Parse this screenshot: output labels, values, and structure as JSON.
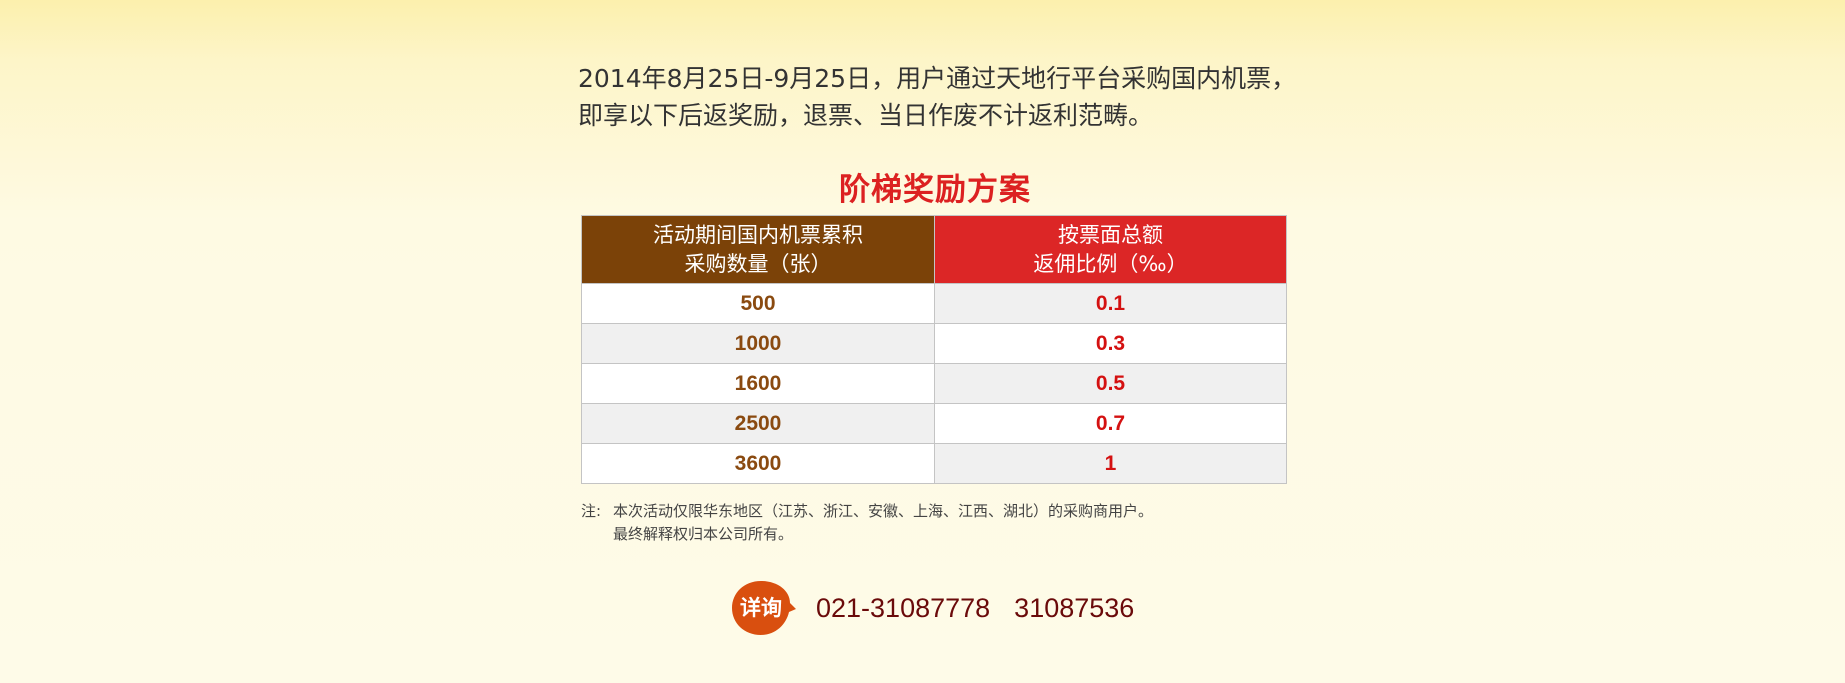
{
  "intro": {
    "line1": "2014年8月25日-9月25日，用户通过天地行平台采购国内机票，",
    "line2": "即享以下后返奖励，退票、当日作废不计返利范畴。"
  },
  "plan": {
    "title": "阶梯奖励方案",
    "headers": {
      "quantity_line1": "活动期间国内机票累积",
      "quantity_line2": "采购数量（张）",
      "rate_line1": "按票面总额",
      "rate_line2": "返佣比例（‰）"
    },
    "rows": [
      {
        "quantity": "500",
        "rate": "0.1"
      },
      {
        "quantity": "1000",
        "rate": "0.3"
      },
      {
        "quantity": "1600",
        "rate": "0.5"
      },
      {
        "quantity": "2500",
        "rate": "0.7"
      },
      {
        "quantity": "3600",
        "rate": "1"
      }
    ]
  },
  "note": {
    "prefix": "注:",
    "line1": "本次活动仅限华东地区（江苏、浙江、安徽、上海、江西、湖北）的采购商用户。",
    "line2": "最终解释权归本公司所有。"
  },
  "contact": {
    "badge_label": "详询",
    "phone_primary": "021-31087778",
    "phone_secondary": "31087536"
  },
  "colors": {
    "title_red": "#dc2121",
    "header_brown": "#7b4208",
    "header_red": "#dc2626",
    "quantity_text": "#8a4a10",
    "rate_text": "#d41111",
    "badge_orange": "#d94f0f",
    "phone_text": "#6a0a0a"
  }
}
